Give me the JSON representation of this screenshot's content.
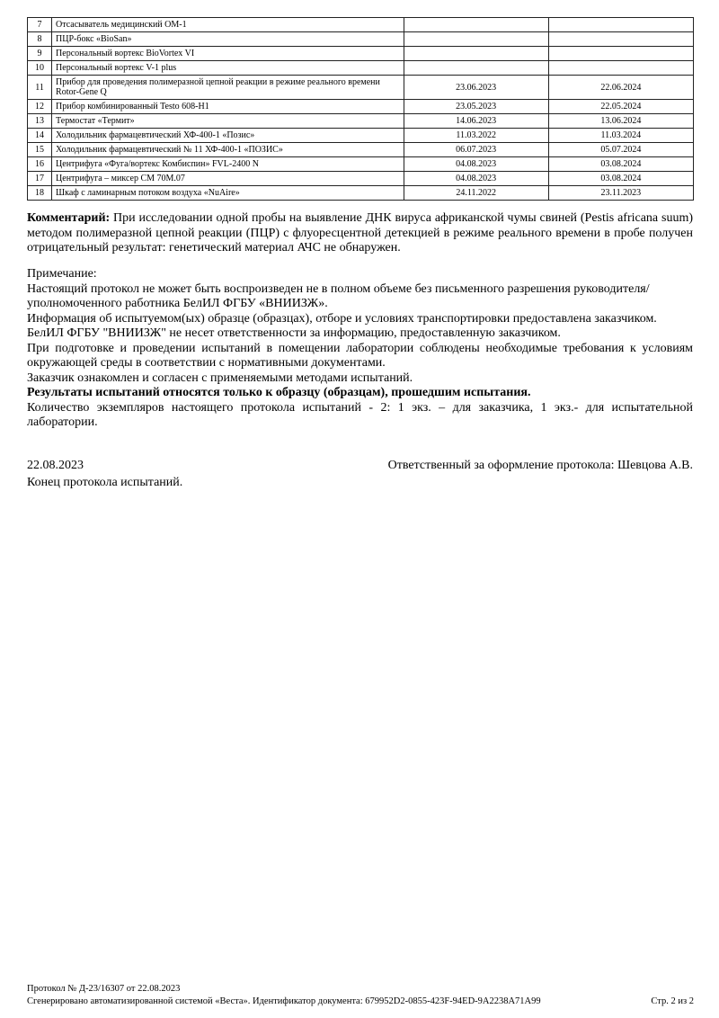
{
  "table": {
    "rows": [
      {
        "n": "7",
        "name": "Отсасыватель медицинский ОМ-1",
        "d1": "",
        "d2": ""
      },
      {
        "n": "8",
        "name": "ПЦР-бокс «BioSan»",
        "d1": "",
        "d2": ""
      },
      {
        "n": "9",
        "name": "Персональный вортекс BioVortex VI",
        "d1": "",
        "d2": ""
      },
      {
        "n": "10",
        "name": "Персональный вортекс V-1 plus",
        "d1": "",
        "d2": ""
      },
      {
        "n": "11",
        "name": "Прибор для проведения полимеразной цепной реакции в режиме реального времени Rotor-Gene Q",
        "d1": "23.06.2023",
        "d2": "22.06.2024"
      },
      {
        "n": "12",
        "name": "Прибор комбинированный Testo 608-H1",
        "d1": "23.05.2023",
        "d2": "22.05.2024"
      },
      {
        "n": "13",
        "name": "Термостат «Термит»",
        "d1": "14.06.2023",
        "d2": "13.06.2024"
      },
      {
        "n": "14",
        "name": "Холодильник фармацевтический ХФ-400-1 «Позис»",
        "d1": "11.03.2022",
        "d2": "11.03.2024"
      },
      {
        "n": "15",
        "name": "Холодильник фармацевтический № 11 ХФ-400-1 «ПОЗИС»",
        "d1": "06.07.2023",
        "d2": "05.07.2024"
      },
      {
        "n": "16",
        "name": "Центрифуга «Фуга/вортекс Комбиспин» FVL-2400 N",
        "d1": "04.08.2023",
        "d2": "03.08.2024"
      },
      {
        "n": "17",
        "name": "Центрифуга – миксер СМ 70М.07",
        "d1": "04.08.2023",
        "d2": "03.08.2024"
      },
      {
        "n": "18",
        "name": "Шкаф с ламинарным потоком воздуха «NuAire»",
        "d1": "24.11.2022",
        "d2": "23.11.2023"
      }
    ]
  },
  "comment": {
    "label": "Комментарий:",
    "text": " При исследовании одной пробы на выявление ДНК вируса африканской чумы свиней (Pestis africana suum) методом полимеразной цепной реакции (ПЦР) с флуоресцентной детекцией в режиме реального времени в пробе получен отрицательный результат: генетический материал АЧС не обнаружен."
  },
  "notes": {
    "title": "Примечание:",
    "p1": "Настоящий протокол не может быть воспроизведен не в полном объеме без письменного разрешения руководителя/уполномоченного работника БелИЛ ФГБУ «ВНИИЗЖ».",
    "p2": "Информация об испытуемом(ых) образце (образцах), отборе и условиях транспортировки предоставлена заказчиком. БелИЛ ФГБУ \"ВНИИЗЖ\" не несет ответственности за информацию, предоставленную заказчиком.",
    "p3": "При подготовке и проведении испытаний в помещении лаборатории соблюдены необходимые требования к условиям окружающей среды в соответствии с нормативными документами.",
    "p4": "Заказчик ознакомлен и согласен с применяемыми методами испытаний.",
    "p5": "Результаты испытаний относятся только к образцу (образцам), прошедшим испытания.",
    "p6": "Количество экземпляров настоящего протокола испытаний - 2: 1 экз. – для заказчика, 1 экз.- для испытательной лаборатории."
  },
  "signoff": {
    "date": "22.08.2023",
    "responsible": "Ответственный за оформление протокола: Шевцова А.В.",
    "end": "Конец протокола испытаний."
  },
  "footer": {
    "protocol": "Протокол № Д-23/16307 от 22.08.2023",
    "generated": "Сгенерировано автоматизированной системой «Веста». Идентификатор документа: 679952D2-0855-423F-94ED-9A2238A71A99",
    "page": "Стр. 2 из 2"
  }
}
